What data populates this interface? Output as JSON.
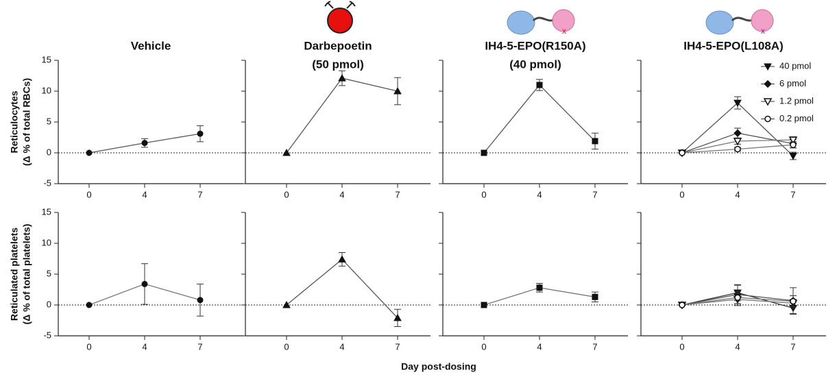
{
  "xlabel": "Day post-dosing",
  "chart_data": [
    {
      "type": "line",
      "title": "Vehicle",
      "ylabel": "Reticulocytes",
      "ylabel_sub": "(Δ % of total RBCs)",
      "categories": [
        "0",
        "4",
        "7"
      ],
      "ylim": [
        -5,
        15
      ],
      "yticks": [
        -5,
        0,
        5,
        10,
        15
      ],
      "show_ytick_labels": true,
      "zero_line": true,
      "series": [
        {
          "color": "#555555",
          "marker": "circle",
          "values": [
            0,
            1.6,
            3.1
          ],
          "errors": [
            0,
            0.7,
            1.3
          ]
        }
      ]
    },
    {
      "type": "line",
      "title": "Darbepoetin",
      "subtitle": "(50 pmol)",
      "categories": [
        "0",
        "4",
        "7"
      ],
      "ylim": [
        -5,
        15
      ],
      "yticks": [
        -5,
        0,
        5,
        10,
        15
      ],
      "show_ytick_labels": false,
      "zero_line": true,
      "series": [
        {
          "color": "#555555",
          "marker": "triangle",
          "values": [
            0,
            12.1,
            10.0
          ],
          "errors": [
            0,
            1.2,
            2.2
          ]
        }
      ]
    },
    {
      "type": "line",
      "title": "IH4-5-EPO(R150A)",
      "subtitle": "(40 pmol)",
      "categories": [
        "0",
        "4",
        "7"
      ],
      "ylim": [
        -5,
        15
      ],
      "yticks": [
        -5,
        0,
        5,
        10,
        15
      ],
      "show_ytick_labels": false,
      "zero_line": true,
      "series": [
        {
          "color": "#555555",
          "marker": "square",
          "values": [
            0,
            11.0,
            1.9
          ],
          "errors": [
            0,
            0.9,
            1.3
          ]
        }
      ]
    },
    {
      "type": "line",
      "title": "IH4-5-EPO(L108A)",
      "categories": [
        "0",
        "4",
        "7"
      ],
      "ylim": [
        -5,
        15
      ],
      "yticks": [
        -5,
        0,
        5,
        10,
        15
      ],
      "show_ytick_labels": false,
      "zero_line": true,
      "legend": "upper right",
      "series": [
        {
          "name": "40 pmol",
          "color": "#555555",
          "marker": "triangle-down",
          "values": [
            0,
            8.1,
            -0.5
          ],
          "errors": [
            0,
            1.0,
            0.6
          ]
        },
        {
          "name": "6 pmol",
          "color": "#555555",
          "marker": "diamond",
          "values": [
            0,
            3.2,
            1.5
          ],
          "errors": [
            0,
            0.8,
            0.7
          ]
        },
        {
          "name": "1.2 pmol",
          "color": "#777777",
          "marker": "triangle-down-open",
          "values": [
            0,
            1.9,
            2.1
          ],
          "errors": [
            0,
            0.5,
            0.5
          ]
        },
        {
          "name": "0.2 pmol",
          "color": "#777777",
          "marker": "circle-open",
          "values": [
            0,
            0.6,
            1.3
          ],
          "errors": [
            0,
            0.3,
            0.5
          ]
        }
      ]
    },
    {
      "type": "line",
      "ylabel": "Reticulated platelets",
      "ylabel_sub": "(Δ % of total platelets)",
      "categories": [
        "0",
        "4",
        "7"
      ],
      "ylim": [
        -5,
        15
      ],
      "yticks": [
        -5,
        0,
        5,
        10,
        15
      ],
      "show_ytick_labels": true,
      "zero_line": true,
      "series": [
        {
          "color": "#777777",
          "marker": "circle",
          "values": [
            0,
            3.4,
            0.8
          ],
          "errors": [
            0,
            3.3,
            2.6
          ]
        }
      ]
    },
    {
      "type": "line",
      "categories": [
        "0",
        "4",
        "7"
      ],
      "ylim": [
        -5,
        15
      ],
      "yticks": [
        -5,
        0,
        5,
        10,
        15
      ],
      "show_ytick_labels": false,
      "zero_line": true,
      "series": [
        {
          "color": "#555555",
          "marker": "triangle",
          "values": [
            0,
            7.4,
            -2.1
          ],
          "errors": [
            0,
            1.1,
            1.4
          ]
        }
      ]
    },
    {
      "type": "line",
      "categories": [
        "0",
        "4",
        "7"
      ],
      "ylim": [
        -5,
        15
      ],
      "yticks": [
        -5,
        0,
        5,
        10,
        15
      ],
      "show_ytick_labels": false,
      "zero_line": true,
      "series": [
        {
          "color": "#777777",
          "marker": "square",
          "values": [
            0,
            2.8,
            1.3
          ],
          "errors": [
            0,
            0.7,
            0.8
          ]
        }
      ]
    },
    {
      "type": "line",
      "categories": [
        "0",
        "4",
        "7"
      ],
      "ylim": [
        -5,
        15
      ],
      "yticks": [
        -5,
        0,
        5,
        10,
        15
      ],
      "show_ytick_labels": false,
      "zero_line": true,
      "series": [
        {
          "color": "#333333",
          "marker": "triangle-down",
          "values": [
            0,
            2.0,
            -0.5
          ],
          "errors": [
            0,
            1.3,
            1.0
          ]
        },
        {
          "color": "#555555",
          "marker": "diamond",
          "values": [
            0,
            1.7,
            0.7
          ],
          "errors": [
            0,
            1.5,
            2.1
          ]
        },
        {
          "color": "#777777",
          "marker": "triangle-down-open",
          "values": [
            0,
            0.9,
            0.3
          ],
          "errors": [
            0,
            1.0,
            0.6
          ]
        },
        {
          "color": "#777777",
          "marker": "circle-open",
          "values": [
            0,
            1.2,
            0.6
          ],
          "errors": [
            0,
            1.0,
            0.9
          ]
        }
      ]
    }
  ]
}
